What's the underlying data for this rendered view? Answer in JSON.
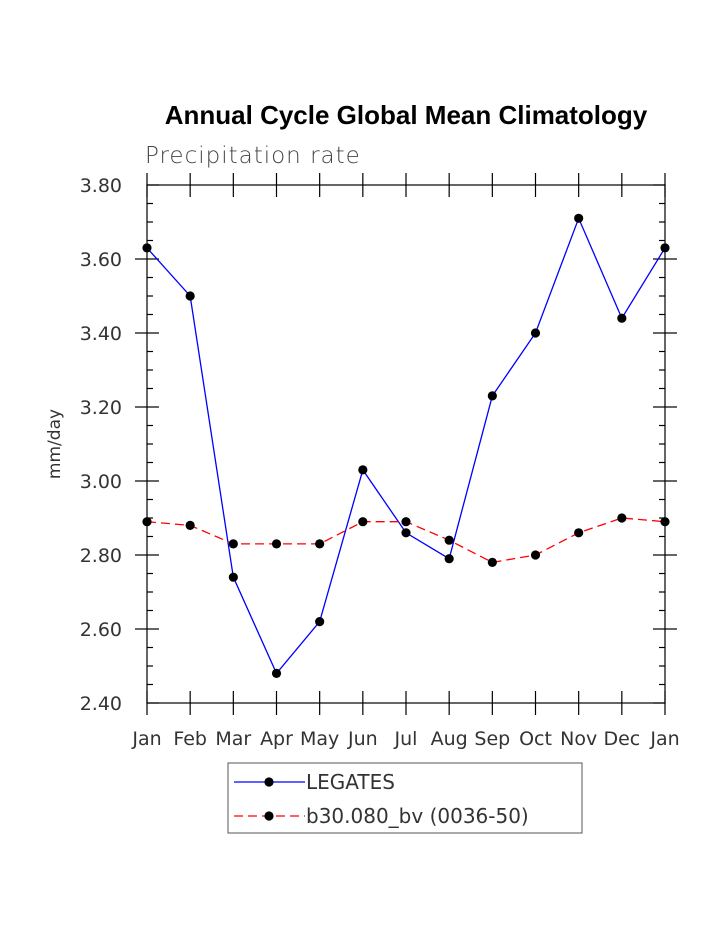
{
  "chart_data": {
    "type": "line",
    "title": "Annual Cycle Global Mean Climatology",
    "subtitle": "Precipitation rate",
    "xlabel": "",
    "ylabel": "mm/day",
    "ylim": [
      2.4,
      3.8
    ],
    "yticks": [
      "2.40",
      "2.60",
      "2.80",
      "3.00",
      "3.20",
      "3.40",
      "3.60",
      "3.80"
    ],
    "categories": [
      "Jan",
      "Feb",
      "Mar",
      "Apr",
      "May",
      "Jun",
      "Jul",
      "Aug",
      "Sep",
      "Oct",
      "Nov",
      "Dec",
      "Jan"
    ],
    "series": [
      {
        "name": "LEGATES",
        "color": "#0000ff",
        "style": "solid",
        "values": [
          3.63,
          3.5,
          2.74,
          2.48,
          2.62,
          3.03,
          2.86,
          2.79,
          3.23,
          3.4,
          3.71,
          3.44,
          3.63
        ]
      },
      {
        "name": "b30.080_bv (0036-50)",
        "color": "#ff0000",
        "style": "dashed",
        "values": [
          2.89,
          2.88,
          2.83,
          2.83,
          2.83,
          2.89,
          2.89,
          2.84,
          2.78,
          2.8,
          2.86,
          2.9,
          2.89
        ]
      }
    ],
    "legend_position": "bottom-center",
    "grid": false
  }
}
